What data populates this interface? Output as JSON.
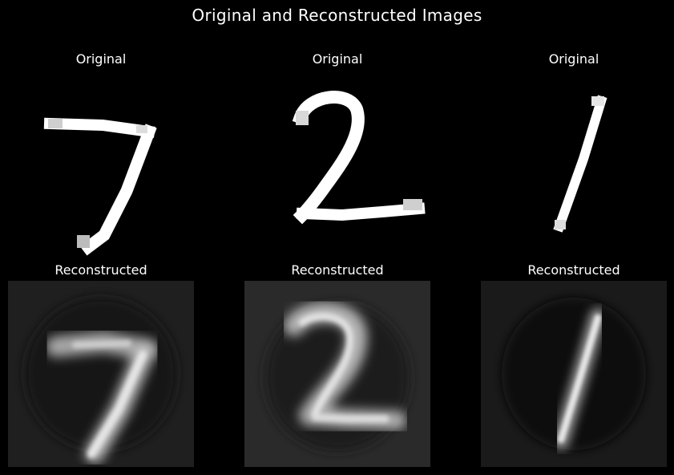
{
  "figure": {
    "title": "Original and Reconstructed Images",
    "background": "#000000",
    "text_color": "#ffffff"
  },
  "panels": [
    {
      "title": "Original",
      "digit": "7",
      "kind": "original"
    },
    {
      "title": "Original",
      "digit": "2",
      "kind": "original"
    },
    {
      "title": "Original",
      "digit": "1",
      "kind": "original"
    },
    {
      "title": "Reconstructed",
      "digit": "7",
      "kind": "reconstructed"
    },
    {
      "title": "Reconstructed",
      "digit": "2",
      "kind": "reconstructed"
    },
    {
      "title": "Reconstructed",
      "digit": "1",
      "kind": "reconstructed"
    }
  ]
}
